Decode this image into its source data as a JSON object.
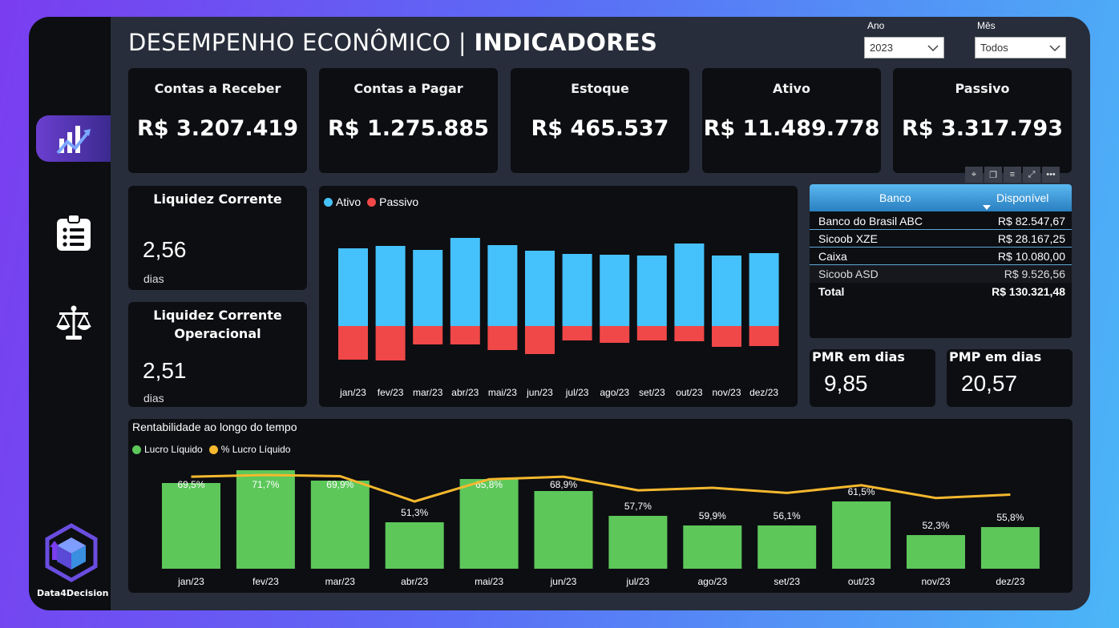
{
  "header": {
    "title_light": "DESEMPENHO ECONÔMICO | ",
    "title_bold": "INDICADORES"
  },
  "filters": {
    "year_label": "Ano",
    "year_value": "2023",
    "month_label": "Mês",
    "month_value": "Todos"
  },
  "sidebar": {
    "items": [
      {
        "icon": "chart-trend-icon",
        "active": true
      },
      {
        "icon": "clipboard-list-icon",
        "active": false
      },
      {
        "icon": "balance-scale-icon",
        "active": false
      }
    ],
    "logo_text": "Data4Decision"
  },
  "kpis": [
    {
      "label": "Contas a Receber",
      "value": "R$ 3.207.419"
    },
    {
      "label": "Contas a Pagar",
      "value": "R$ 1.275.885"
    },
    {
      "label": "Estoque",
      "value": "R$ 465.537"
    },
    {
      "label": "Ativo",
      "value": "R$ 11.489.778"
    },
    {
      "label": "Passivo",
      "value": "R$ 3.317.793"
    }
  ],
  "liquidez": {
    "corrente_label": "Liquidez Corrente",
    "corrente_value": "2,56",
    "corrente_unit": "dias",
    "operacional_label_1": "Liquidez Corrente",
    "operacional_label_2": "Operacional",
    "operacional_value": "2,51",
    "operacional_unit": "dias"
  },
  "bank_table": {
    "col_bank": "Banco",
    "col_available": "Disponível",
    "rows": [
      {
        "bank": "Banco do Brasil ABC",
        "value": "R$ 82.547,67"
      },
      {
        "bank": "Sicoob XZE",
        "value": "R$ 28.167,25"
      },
      {
        "bank": "Caixa",
        "value": "R$ 10.080,00"
      },
      {
        "bank": "Sicoob ASD",
        "value": "R$ 9.526,56"
      }
    ],
    "total_label": "Total",
    "total_value": "R$ 130.321,48"
  },
  "pmr": {
    "label": "PMR em dias",
    "value": "9,85"
  },
  "pmp": {
    "label": "PMP em dias",
    "value": "20,57"
  },
  "colors": {
    "ativo": "#45c2fb",
    "passivo": "#f04848",
    "lucro": "#5dc75a",
    "pct_lucro": "#f5b82e"
  },
  "chart_data": [
    {
      "type": "bar",
      "stacked": "diverging",
      "legend": [
        "Ativo",
        "Passivo"
      ],
      "categories": [
        "jan/23",
        "fev/23",
        "mar/23",
        "abr/23",
        "mai/23",
        "jun/23",
        "jul/23",
        "ago/23",
        "set/23",
        "out/23",
        "nov/23",
        "dez/23"
      ],
      "series": [
        {
          "name": "Ativo",
          "values": [
            970000,
            1000000,
            950000,
            1100000,
            1010000,
            940000,
            900000,
            890000,
            880000,
            1030000,
            880000,
            910000
          ]
        },
        {
          "name": "Passivo",
          "values": [
            -420000,
            -430000,
            -230000,
            -230000,
            -300000,
            -350000,
            -180000,
            -210000,
            -180000,
            -190000,
            -260000,
            -250000
          ]
        }
      ]
    },
    {
      "type": "bar",
      "title": "Rentabilidade ao longo do tempo",
      "legend": [
        "Lucro Líquido",
        "% Lucro Líquido"
      ],
      "categories": [
        "jan/23",
        "fev/23",
        "mar/23",
        "abr/23",
        "mai/23",
        "jun/23",
        "jul/23",
        "ago/23",
        "set/23",
        "out/23",
        "nov/23",
        "dez/23"
      ],
      "series": [
        {
          "name": "Lucro Líquido",
          "values": [
            107,
            123,
            110,
            58,
            112,
            97,
            66,
            54,
            54,
            84,
            42,
            52
          ]
        },
        {
          "name": "% Lucro Líquido",
          "values": [
            69.5,
            71.7,
            69.9,
            51.3,
            65.8,
            68.9,
            57.7,
            59.9,
            56.1,
            61.5,
            52.3,
            55.8
          ]
        }
      ],
      "labels": [
        "69,5%",
        "71,7%",
        "69,9%",
        "51,3%",
        "65,8%",
        "68,9%",
        "57,7%",
        "59,9%",
        "56,1%",
        "61,5%",
        "52,3%",
        "55,8%"
      ],
      "line_values": [
        73.5,
        74.5,
        73.8,
        59.0,
        72.0,
        73.5,
        65.5,
        67.0,
        64.0,
        68.5,
        61.0,
        63.0
      ]
    }
  ]
}
